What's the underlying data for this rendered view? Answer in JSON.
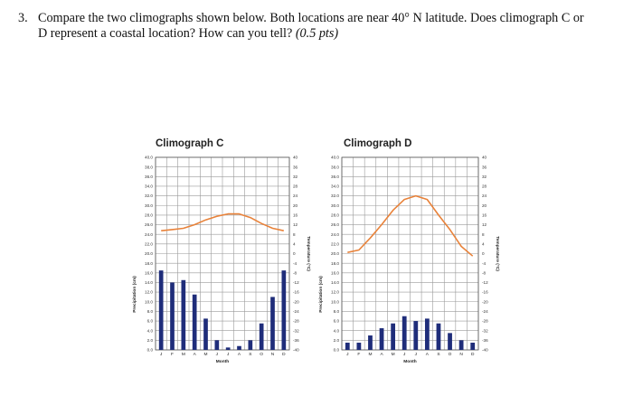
{
  "question": {
    "number": "3.",
    "text_line1": "Compare the two climographs shown below. Both locations are near 40° N latitude. Does climograph C or",
    "text_line2": "D represent a coastal location? How can you tell?",
    "points": "(0.5 pts)"
  },
  "colors": {
    "bar": "#1f2d7a",
    "line": "#e8823a",
    "grid": "#9a9a9a"
  },
  "chart_data": [
    {
      "type": "bar+line",
      "title": "Climograph C",
      "xlabel": "Month",
      "ylabel_left": "Precipitation (cm)",
      "ylabel_right": "Temperature (°C)",
      "categories": [
        "J",
        "F",
        "M",
        "A",
        "M",
        "J",
        "J",
        "A",
        "S",
        "O",
        "N",
        "D"
      ],
      "left_ticks": [
        "40.0",
        "38.0",
        "36.0",
        "34.0",
        "32.0",
        "30.0",
        "28.0",
        "26.0",
        "24.0",
        "22.0",
        "20.0",
        "18.0",
        "16.0",
        "14.0",
        "12.0",
        "10.0",
        "8.0",
        "6.0",
        "4.0",
        "2.0",
        "0.0"
      ],
      "right_ticks": [
        "40",
        "36",
        "32",
        "28",
        "24",
        "20",
        "16",
        "12",
        "8",
        "4",
        "0",
        "-4",
        "-8",
        "-12",
        "-16",
        "-20",
        "-24",
        "-28",
        "-32",
        "-36",
        "-40"
      ],
      "ylim_precip": [
        0,
        40
      ],
      "ylim_temp": [
        -40,
        40
      ],
      "precipitation": [
        16.5,
        14.0,
        14.5,
        11.5,
        6.5,
        2.0,
        0.5,
        0.8,
        2.0,
        5.5,
        11.0,
        16.5
      ],
      "temperature": [
        9.5,
        10.0,
        10.5,
        12.0,
        14.0,
        15.5,
        16.5,
        16.5,
        15.0,
        12.5,
        10.5,
        9.5
      ]
    },
    {
      "type": "bar+line",
      "title": "Climograph D",
      "xlabel": "Month",
      "ylabel_left": "Precipitation (cm)",
      "ylabel_right": "Temperature (°C)",
      "categories": [
        "J",
        "F",
        "M",
        "A",
        "M",
        "J",
        "J",
        "A",
        "S",
        "O",
        "N",
        "D"
      ],
      "left_ticks": [
        "40.0",
        "38.0",
        "36.0",
        "34.0",
        "32.0",
        "30.0",
        "28.0",
        "26.0",
        "24.0",
        "22.0",
        "20.0",
        "18.0",
        "16.0",
        "14.0",
        "12.0",
        "10.0",
        "8.0",
        "6.0",
        "4.0",
        "2.0",
        "0.0"
      ],
      "right_ticks": [
        "40",
        "36",
        "32",
        "28",
        "24",
        "20",
        "16",
        "12",
        "8",
        "4",
        "0",
        "-4",
        "-8",
        "-12",
        "-16",
        "-20",
        "-24",
        "-28",
        "-32",
        "-36",
        "-40"
      ],
      "ylim_precip": [
        0,
        40
      ],
      "ylim_temp": [
        -40,
        40
      ],
      "precipitation": [
        1.5,
        1.5,
        3.0,
        4.5,
        5.5,
        7.0,
        6.0,
        6.5,
        5.5,
        3.5,
        2.0,
        1.5
      ],
      "temperature": [
        0.5,
        1.5,
        6.5,
        12.0,
        18.0,
        22.5,
        24.0,
        22.5,
        16.0,
        10.0,
        3.0,
        -1.0
      ]
    }
  ]
}
